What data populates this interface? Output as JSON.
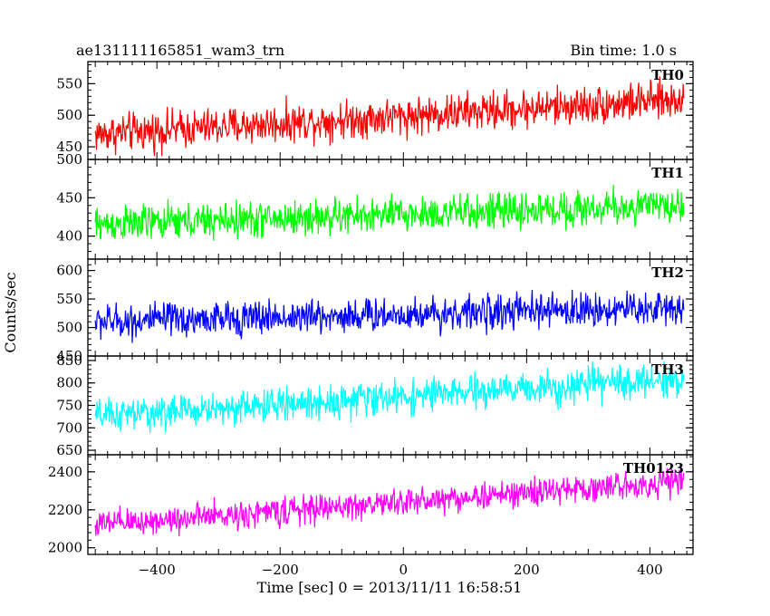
{
  "header": {
    "title": "ae131111165851_wam3_trn",
    "bin_time": "Bin time: 1.0 s"
  },
  "chart_data": {
    "type": "line",
    "title": "ae131111165851_wam3_trn",
    "xlabel": "Time [sec] 0 = 2013/11/11 16:58:51",
    "ylabel": "Counts/sec",
    "xlim": [
      -512,
      470
    ],
    "x_ticks": [
      -400,
      -200,
      0,
      200,
      400
    ],
    "x_tick_labels": [
      "−400",
      "−200",
      "0",
      "200",
      "400"
    ],
    "bin_time_s": 1.0,
    "x_start": -500,
    "x_end": 455,
    "panels": [
      {
        "name": "TH0",
        "color": "#ff0000",
        "ylim": [
          430,
          585
        ],
        "y_ticks": [
          450,
          500,
          550
        ],
        "trend_start": 470,
        "trend_end": 525,
        "noise_amplitude": 45
      },
      {
        "name": "TH1",
        "color": "#00ff00",
        "ylim": [
          370,
          500
        ],
        "y_ticks": [
          400,
          450,
          500
        ],
        "trend_start": 415,
        "trend_end": 440,
        "noise_amplitude": 35
      },
      {
        "name": "TH2",
        "color": "#0000ff",
        "ylim": [
          450,
          620
        ],
        "y_ticks": [
          450,
          500,
          550,
          600
        ],
        "trend_start": 510,
        "trend_end": 535,
        "noise_amplitude": 45
      },
      {
        "name": "TH3",
        "color": "#00ffff",
        "ylim": [
          640,
          860
        ],
        "y_ticks": [
          650,
          700,
          750,
          800,
          850
        ],
        "trend_start": 725,
        "trend_end": 810,
        "noise_amplitude": 55
      },
      {
        "name": "TH0123",
        "color": "#ff00ff",
        "ylim": [
          1965,
          2490
        ],
        "y_ticks": [
          2000,
          2200,
          2400
        ],
        "trend_start": 2120,
        "trend_end": 2350,
        "noise_amplitude": 110
      }
    ]
  }
}
